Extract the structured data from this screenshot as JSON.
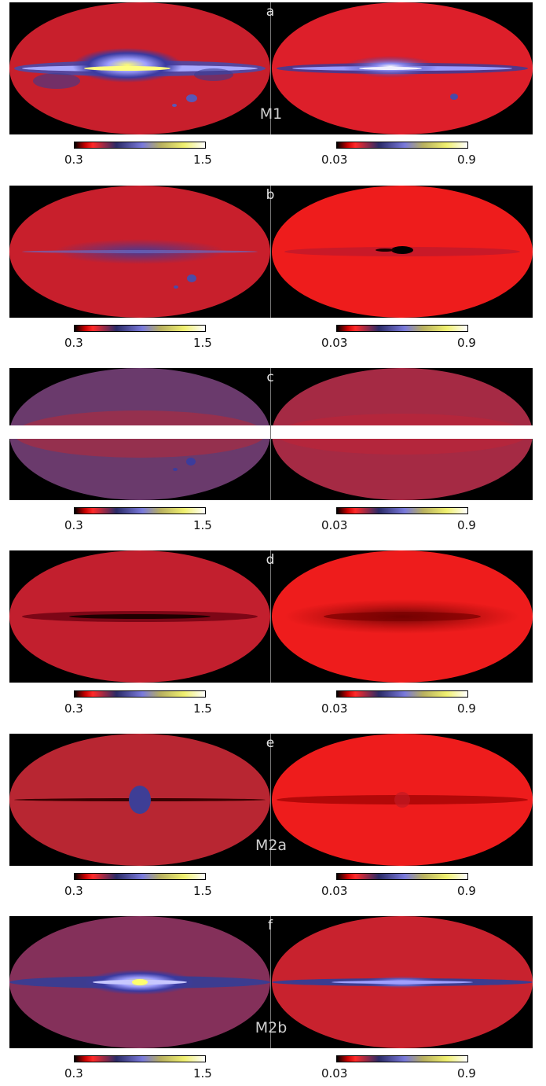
{
  "colorbars": {
    "left": {
      "min": "0.3",
      "max": "1.5"
    },
    "right": {
      "min": "0.03",
      "max": "0.9"
    }
  },
  "panels": [
    {
      "letter": "a",
      "model": "M1"
    },
    {
      "letter": "b",
      "model": ""
    },
    {
      "letter": "c",
      "model": ""
    },
    {
      "letter": "d",
      "model": ""
    },
    {
      "letter": "e",
      "model": "M2a"
    },
    {
      "letter": "f",
      "model": "M2b"
    }
  ]
}
